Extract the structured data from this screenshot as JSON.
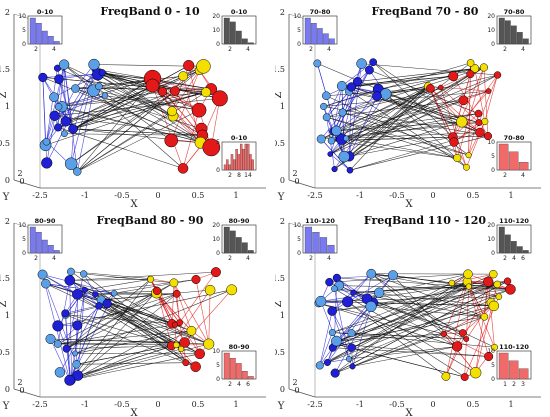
{
  "colors": {
    "left_module": "#1f1fd6",
    "left_module_light": "#5aa0e8",
    "right_module": "#e31818",
    "right_module_light": "#f4e000",
    "cross_links": "#111111",
    "hist_blue": "#7a7af0",
    "hist_gray": "#555555",
    "hist_red": "#f06a6a"
  },
  "chart_data": [
    {
      "type": "scatter",
      "title": "FreqBand 0 - 10",
      "xlabel": "X",
      "ylabel": "Y",
      "zlabel": "Z",
      "x_ticks": [
        "-2.5",
        "-1",
        "-0.5",
        "0",
        "0.5",
        "1"
      ],
      "z_ticks": [
        "0",
        "0.5",
        "1",
        "1.5",
        "2"
      ],
      "y_ticks": [
        "0",
        "2"
      ],
      "node_scale": 1.7,
      "insets": [
        {
          "title": "0-10",
          "color": "blue",
          "y_ticks": [
            "0",
            "5",
            "10"
          ],
          "x_ticks": [
            "2",
            "4"
          ],
          "values": [
            10,
            8,
            5,
            3,
            1
          ]
        },
        {
          "title": "0-10",
          "color": "gray",
          "y_ticks": [
            "0",
            "10",
            "20"
          ],
          "x_ticks": [
            "2",
            "4"
          ],
          "values": [
            20,
            17,
            10,
            4,
            1
          ]
        },
        {
          "title": "0-10",
          "color": "red",
          "y_ticks": [
            "0",
            "5"
          ],
          "x_ticks": [
            "2",
            "8",
            "14"
          ],
          "values": [
            1,
            2,
            1,
            3,
            2,
            4,
            3,
            5,
            4,
            6,
            5,
            3,
            2
          ]
        }
      ]
    },
    {
      "type": "scatter",
      "title": "FreqBand 70 - 80",
      "xlabel": "X",
      "ylabel": "Y",
      "zlabel": "Z",
      "x_ticks": [
        "-2.5",
        "-1",
        "-0.5",
        "0",
        "0.5",
        "1"
      ],
      "z_ticks": [
        "0",
        "0.5",
        "1",
        "1.5",
        "2"
      ],
      "y_ticks": [
        "0",
        "2"
      ],
      "node_scale": 1.0,
      "insets": [
        {
          "title": "70-80",
          "color": "blue",
          "y_ticks": [
            "0",
            "5",
            "10"
          ],
          "x_ticks": [
            "2",
            "4"
          ],
          "values": [
            10,
            8,
            6,
            4,
            2
          ]
        },
        {
          "title": "70-80",
          "color": "gray",
          "y_ticks": [
            "0",
            "10",
            "20"
          ],
          "x_ticks": [
            "2",
            "4"
          ],
          "values": [
            20,
            18,
            14,
            9,
            4
          ]
        },
        {
          "title": "70-80",
          "color": "red",
          "y_ticks": [
            "0",
            "5",
            "10"
          ],
          "x_ticks": [
            "2",
            "4"
          ],
          "values": [
            10,
            7,
            3
          ]
        }
      ]
    },
    {
      "type": "scatter",
      "title": "FreqBand 80 - 90",
      "xlabel": "X",
      "ylabel": "Y",
      "zlabel": "Z",
      "x_ticks": [
        "-2.5",
        "-1",
        "-0.5",
        "0",
        "0.5",
        "1"
      ],
      "z_ticks": [
        "0",
        "0.5",
        "1",
        "1.5",
        "2"
      ],
      "y_ticks": [
        "0",
        "2"
      ],
      "node_scale": 1.0,
      "insets": [
        {
          "title": "80-90",
          "color": "blue",
          "y_ticks": [
            "0",
            "5",
            "10"
          ],
          "x_ticks": [
            "2",
            "4"
          ],
          "values": [
            10,
            8,
            5,
            3,
            1
          ]
        },
        {
          "title": "80-90",
          "color": "gray",
          "y_ticks": [
            "0",
            "10",
            "20"
          ],
          "x_ticks": [
            "2",
            "4"
          ],
          "values": [
            20,
            17,
            12,
            8,
            2
          ]
        },
        {
          "title": "80-90",
          "color": "red",
          "y_ticks": [
            "0",
            "5",
            "10"
          ],
          "x_ticks": [
            "2",
            "4",
            "6"
          ],
          "values": [
            10,
            8,
            6,
            3,
            1
          ]
        }
      ]
    },
    {
      "type": "scatter",
      "title": "FreqBand 110 - 120",
      "xlabel": "X",
      "ylabel": "Y",
      "zlabel": "Z",
      "x_ticks": [
        "-2.5",
        "-1",
        "-0.5",
        "0",
        "0.5",
        "1"
      ],
      "z_ticks": [
        "0",
        "0.5",
        "1",
        "1.5",
        "2"
      ],
      "y_ticks": [
        "0",
        "2"
      ],
      "node_scale": 1.0,
      "insets": [
        {
          "title": "110-120",
          "color": "blue",
          "y_ticks": [
            "0",
            "5",
            "10"
          ],
          "x_ticks": [
            "2",
            "4"
          ],
          "values": [
            10,
            8,
            6,
            3
          ]
        },
        {
          "title": "110-120",
          "color": "gray",
          "y_ticks": [
            "0",
            "10",
            "20"
          ],
          "x_ticks": [
            "2",
            "4",
            "6"
          ],
          "values": [
            20,
            14,
            9,
            5,
            2
          ]
        },
        {
          "title": "110-120",
          "color": "red",
          "y_ticks": [
            "0",
            "5",
            "10"
          ],
          "x_ticks": [
            "1",
            "2",
            "3"
          ],
          "values": [
            10,
            7,
            4
          ]
        }
      ]
    }
  ]
}
